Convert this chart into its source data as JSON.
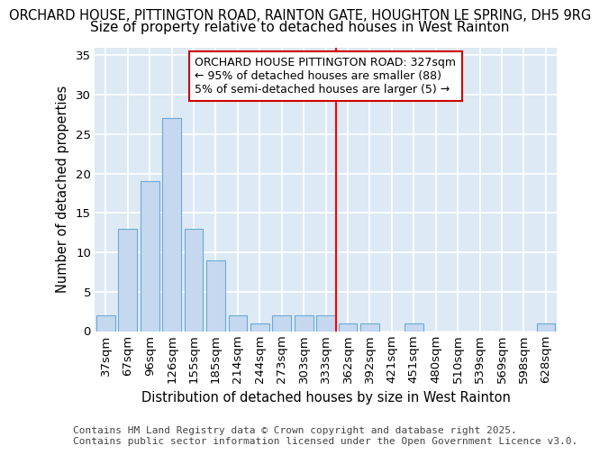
{
  "title_line1": "ORCHARD HOUSE, PITTINGTON ROAD, RAINTON GATE, HOUGHTON LE SPRING, DH5 9RG",
  "title_line2": "Size of property relative to detached houses in West Rainton",
  "xlabel": "Distribution of detached houses by size in West Rainton",
  "ylabel": "Number of detached properties",
  "categories": [
    "37sqm",
    "67sqm",
    "96sqm",
    "126sqm",
    "155sqm",
    "185sqm",
    "214sqm",
    "244sqm",
    "273sqm",
    "303sqm",
    "333sqm",
    "362sqm",
    "392sqm",
    "421sqm",
    "451sqm",
    "480sqm",
    "510sqm",
    "539sqm",
    "569sqm",
    "598sqm",
    "628sqm"
  ],
  "values": [
    2,
    13,
    19,
    27,
    13,
    9,
    2,
    1,
    2,
    2,
    2,
    1,
    1,
    0,
    1,
    0,
    0,
    0,
    0,
    0,
    1
  ],
  "bar_color": "#c5d8f0",
  "bar_edge_color": "#6aaad4",
  "background_color": "#dde9f5",
  "grid_color": "#ffffff",
  "annotation_text": "ORCHARD HOUSE PITTINGTON ROAD: 327sqm\n← 95% of detached houses are smaller (88)\n5% of semi-detached houses are larger (5) →",
  "annotation_box_color": "#ffffff",
  "annotation_box_edge_color": "#cc0000",
  "red_line_x": 10.45,
  "ylim": [
    0,
    36
  ],
  "yticks": [
    0,
    5,
    10,
    15,
    20,
    25,
    30,
    35
  ],
  "footer_text": "Contains HM Land Registry data © Crown copyright and database right 2025.\nContains public sector information licensed under the Open Government Licence v3.0.",
  "title1_fontsize": 10.5,
  "title2_fontsize": 11.0,
  "axis_label_fontsize": 10.5,
  "tick_fontsize": 9.5,
  "annotation_fontsize": 9.0,
  "footer_fontsize": 8.0
}
